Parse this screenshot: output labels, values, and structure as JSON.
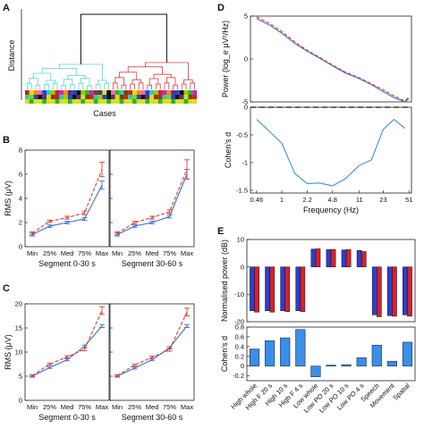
{
  "figure": {
    "panels": {
      "A": {
        "letter": "A",
        "ylabel": "Distance",
        "xlabel": "Cases",
        "cluster_colors": [
          "#55d6cf",
          "#e03a3a"
        ],
        "palette": [
          "#cc2222",
          "#22bb22",
          "#2244dd",
          "#dddd22",
          "#cc22cc",
          "#22cccc",
          "#111111",
          "#ff8800",
          "#7f3f00",
          "#99cc00",
          "#ff66aa",
          "#5a2d82"
        ]
      },
      "B": {
        "letter": "B"
      },
      "C": {
        "letter": "C"
      },
      "D": {
        "letter": "D"
      },
      "E": {
        "letter": "E"
      }
    }
  },
  "chart_data": [
    {
      "id": "A",
      "type": "dendrogram",
      "title": "",
      "xlabel": "Cases",
      "ylabel": "Distance",
      "clusters": [
        {
          "color": "#55d6cf",
          "leaves": 20
        },
        {
          "color": "#e03a3a",
          "leaves": 20
        }
      ],
      "top_link": true
    },
    {
      "id": "B-left",
      "type": "line",
      "ylabel": "RMS (μV)",
      "xlabel": "Segment 0-30 s",
      "categories": [
        "Min",
        "25%",
        "Med",
        "75%",
        "Max"
      ],
      "ylim": [
        0,
        8
      ],
      "yticks": [
        0,
        2,
        4,
        6,
        8
      ],
      "series": [
        {
          "color": "#3a6fd8",
          "dash": false,
          "values": [
            1.0,
            1.7,
            2.0,
            2.3,
            5.1
          ],
          "errors": [
            0.12,
            0.1,
            0.1,
            0.12,
            0.35
          ]
        },
        {
          "color": "#e03a2a",
          "dash": true,
          "values": [
            1.1,
            2.1,
            2.4,
            2.8,
            6.4
          ],
          "errors": [
            0.12,
            0.1,
            0.12,
            0.15,
            0.6
          ]
        }
      ]
    },
    {
      "id": "B-right",
      "type": "line",
      "xlabel": "Segment 30-60 s",
      "categories": [
        "Min",
        "25%",
        "Med",
        "75%",
        "Max"
      ],
      "ylim": [
        0,
        8
      ],
      "yticks": [
        0,
        2,
        4,
        6,
        8
      ],
      "series": [
        {
          "color": "#3a6fd8",
          "dash": false,
          "values": [
            1.0,
            1.7,
            2.0,
            2.5,
            6.0
          ],
          "errors": [
            0.12,
            0.1,
            0.1,
            0.12,
            0.4
          ]
        },
        {
          "color": "#e03a2a",
          "dash": true,
          "values": [
            1.1,
            2.0,
            2.4,
            2.9,
            6.4
          ],
          "errors": [
            0.12,
            0.1,
            0.12,
            0.15,
            0.8
          ]
        }
      ]
    },
    {
      "id": "C-left",
      "type": "line",
      "ylabel": "RMS (μV)",
      "xlabel": "Segment 0-30 s",
      "categories": [
        "Min",
        "25%",
        "Med",
        "75%",
        "Max"
      ],
      "ylim": [
        0,
        20
      ],
      "yticks": [
        0,
        5,
        10,
        15,
        20
      ],
      "series": [
        {
          "color": "#3a6fd8",
          "dash": false,
          "values": [
            5.0,
            6.8,
            8.4,
            11.2,
            15.4
          ],
          "errors": [
            0.2,
            0.2,
            0.2,
            0.25,
            0.3
          ]
        },
        {
          "color": "#e03a2a",
          "dash": true,
          "values": [
            5.1,
            7.5,
            9.0,
            10.6,
            18.6
          ],
          "errors": [
            0.2,
            0.2,
            0.25,
            0.3,
            0.8
          ]
        }
      ]
    },
    {
      "id": "C-right",
      "type": "line",
      "xlabel": "Segment 30-60 s",
      "categories": [
        "Min",
        "25%",
        "Med",
        "75%",
        "Max"
      ],
      "ylim": [
        0,
        20
      ],
      "yticks": [
        0,
        5,
        10,
        15,
        20
      ],
      "series": [
        {
          "color": "#3a6fd8",
          "dash": false,
          "values": [
            5.0,
            6.7,
            8.4,
            10.9,
            15.4
          ],
          "errors": [
            0.2,
            0.2,
            0.2,
            0.25,
            0.3
          ]
        },
        {
          "color": "#e03a2a",
          "dash": true,
          "values": [
            5.1,
            7.3,
            8.9,
            10.5,
            18.3
          ],
          "errors": [
            0.2,
            0.2,
            0.25,
            0.3,
            0.8
          ]
        }
      ]
    },
    {
      "id": "D-top",
      "type": "line",
      "ylabel": "Power (log_e μV²/Hz)",
      "xscale": "log",
      "xlim": [
        0.38,
        55
      ],
      "ylim": [
        -5,
        5
      ],
      "yticks": [
        -5,
        0,
        5
      ],
      "x": [
        0.46,
        0.7,
        1,
        1.5,
        2.2,
        3.2,
        4.8,
        7,
        11,
        16,
        23,
        32,
        45,
        51
      ],
      "series": [
        {
          "color": "#3a6fd8",
          "dash": false,
          "values": [
            4.7,
            3.9,
            3.0,
            1.8,
            0.9,
            0.1,
            -0.8,
            -1.6,
            -2.3,
            -3.0,
            -3.8,
            -4.5,
            -5.0,
            -4.6
          ]
        },
        {
          "color": "#e03a2a",
          "dash": true,
          "values": [
            4.9,
            4.1,
            3.2,
            2.0,
            1.0,
            0.2,
            -0.7,
            -1.5,
            -2.2,
            -2.9,
            -3.6,
            -4.3,
            -4.9,
            -4.4
          ]
        }
      ]
    },
    {
      "id": "D-bottom",
      "type": "line",
      "ylabel": "Cohen's d",
      "xlabel": "Frequency (Hz)",
      "xscale": "log",
      "xlim": [
        0.38,
        55
      ],
      "ylim": [
        -1.55,
        0
      ],
      "yticks": [
        -1.5,
        -1,
        -0.5,
        0
      ],
      "xticks": [
        0.46,
        1,
        2.2,
        4.8,
        11,
        23,
        51
      ],
      "xticklabels": [
        "0.46",
        "1",
        "2.2",
        "4.8",
        "11",
        "23",
        "51"
      ],
      "zero_dashed": true,
      "series": [
        {
          "color": "#3a8fd8",
          "dash": false,
          "values_x": [
            0.46,
            0.7,
            1,
            1.5,
            2.2,
            3.2,
            4.8,
            7,
            11,
            16,
            23,
            32,
            45
          ],
          "values": [
            -0.22,
            -0.45,
            -0.65,
            -1.2,
            -1.38,
            -1.37,
            -1.42,
            -1.3,
            -1.05,
            -0.95,
            -0.4,
            -0.22,
            -0.38
          ]
        }
      ]
    },
    {
      "id": "E-top",
      "type": "bar",
      "ylabel": "Normalised power (dB)",
      "ylim": [
        -20,
        10
      ],
      "yticks": [
        -20,
        -10,
        0,
        10
      ],
      "categories": [
        "High whole",
        "High F 20 s",
        "High 10 s",
        "High F 4 s",
        "Low whole",
        "Low PO 20 s",
        "Low PO 10 s",
        "Low PO 4 s",
        "Speech",
        "Movement",
        "Spatial"
      ],
      "series": [
        {
          "color": "#2a3fcf",
          "values": [
            -16,
            -16,
            -16,
            -16,
            6.5,
            6.3,
            6.2,
            6.0,
            -17.5,
            -17.8,
            -17.5
          ]
        },
        {
          "color": "#d8202a",
          "values": [
            -16.5,
            -16.5,
            -16.3,
            -16.3,
            6.6,
            6.4,
            6.3,
            5.6,
            -18.2,
            -18.0,
            -18.0
          ]
        }
      ]
    },
    {
      "id": "E-bottom",
      "type": "bar",
      "ylabel": "Cohen's d",
      "ylim": [
        -0.3,
        0.8
      ],
      "yticks": [
        -0.2,
        0,
        0.2,
        0.4,
        0.6,
        0.8
      ],
      "categories": [
        "High whole",
        "High F 20 s",
        "High 10 s",
        "High F 4 s",
        "Low whole",
        "Low PO 20 s",
        "Low PO 10 s",
        "Low PO 4 s",
        "Speech",
        "Movement",
        "Spatial"
      ],
      "series": [
        {
          "color": "#3a8fe8",
          "values": [
            0.35,
            0.52,
            0.58,
            0.75,
            -0.22,
            0.02,
            0.03,
            0.17,
            0.43,
            0.1,
            0.49
          ]
        }
      ]
    }
  ]
}
